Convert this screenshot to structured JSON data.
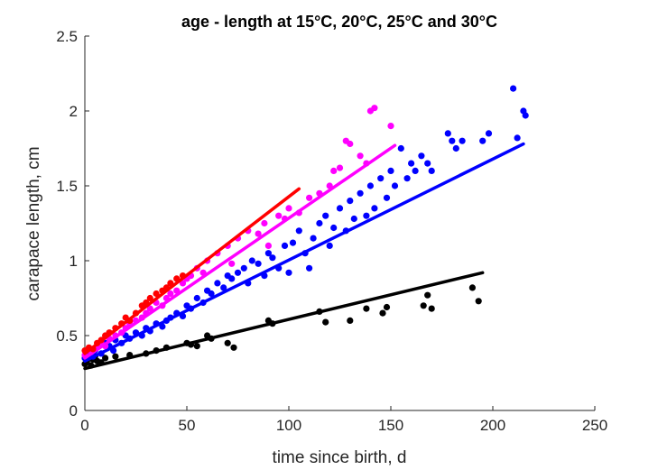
{
  "chart_data": {
    "type": "scatter",
    "title": "age - length at 15°C, 20°C, 25°C and 30°C",
    "xlabel": "time since birth, d",
    "ylabel": "carapace length, cm",
    "xlim": [
      0,
      250
    ],
    "ylim": [
      0,
      2.5
    ],
    "xticks": [
      "0",
      "50",
      "100",
      "150",
      "200",
      "250"
    ],
    "yticks": [
      "0",
      "0.5",
      "1",
      "1.5",
      "2",
      "2.5"
    ],
    "grid": false,
    "legend": "none",
    "series": [
      {
        "color": "#000000",
        "fit": [
          [
            0,
            0.28
          ],
          [
            195,
            0.92
          ]
        ],
        "points": [
          [
            0,
            0.31
          ],
          [
            1,
            0.33
          ],
          [
            2,
            0.35
          ],
          [
            3,
            0.3
          ],
          [
            4,
            0.34
          ],
          [
            5,
            0.36
          ],
          [
            6,
            0.33
          ],
          [
            8,
            0.32
          ],
          [
            10,
            0.35
          ],
          [
            15,
            0.36
          ],
          [
            22,
            0.37
          ],
          [
            30,
            0.38
          ],
          [
            35,
            0.4
          ],
          [
            40,
            0.42
          ],
          [
            50,
            0.45
          ],
          [
            52,
            0.44
          ],
          [
            55,
            0.43
          ],
          [
            60,
            0.5
          ],
          [
            62,
            0.48
          ],
          [
            70,
            0.45
          ],
          [
            73,
            0.42
          ],
          [
            90,
            0.6
          ],
          [
            92,
            0.58
          ],
          [
            115,
            0.66
          ],
          [
            118,
            0.59
          ],
          [
            130,
            0.6
          ],
          [
            138,
            0.68
          ],
          [
            146,
            0.65
          ],
          [
            148,
            0.69
          ],
          [
            166,
            0.7
          ],
          [
            168,
            0.77
          ],
          [
            170,
            0.68
          ],
          [
            190,
            0.82
          ],
          [
            193,
            0.73
          ]
        ]
      },
      {
        "color": "#0000ff",
        "fit": [
          [
            0,
            0.33
          ],
          [
            215,
            1.78
          ]
        ],
        "points": [
          [
            0,
            0.35
          ],
          [
            2,
            0.38
          ],
          [
            4,
            0.36
          ],
          [
            5,
            0.4
          ],
          [
            6,
            0.42
          ],
          [
            8,
            0.38
          ],
          [
            10,
            0.45
          ],
          [
            12,
            0.43
          ],
          [
            14,
            0.4
          ],
          [
            15,
            0.47
          ],
          [
            18,
            0.45
          ],
          [
            20,
            0.5
          ],
          [
            22,
            0.48
          ],
          [
            25,
            0.52
          ],
          [
            28,
            0.5
          ],
          [
            30,
            0.55
          ],
          [
            32,
            0.53
          ],
          [
            35,
            0.58
          ],
          [
            38,
            0.56
          ],
          [
            40,
            0.6
          ],
          [
            42,
            0.62
          ],
          [
            45,
            0.65
          ],
          [
            48,
            0.63
          ],
          [
            50,
            0.7
          ],
          [
            52,
            0.68
          ],
          [
            55,
            0.75
          ],
          [
            58,
            0.72
          ],
          [
            60,
            0.8
          ],
          [
            62,
            0.78
          ],
          [
            65,
            0.85
          ],
          [
            68,
            0.82
          ],
          [
            70,
            0.9
          ],
          [
            72,
            0.88
          ],
          [
            75,
            0.92
          ],
          [
            78,
            0.95
          ],
          [
            80,
            0.85
          ],
          [
            82,
            1.0
          ],
          [
            85,
            0.98
          ],
          [
            88,
            0.9
          ],
          [
            90,
            1.05
          ],
          [
            92,
            1.02
          ],
          [
            95,
            0.95
          ],
          [
            98,
            1.1
          ],
          [
            100,
            0.92
          ],
          [
            102,
            1.12
          ],
          [
            105,
            1.2
          ],
          [
            108,
            1.05
          ],
          [
            110,
            0.95
          ],
          [
            112,
            1.15
          ],
          [
            115,
            1.25
          ],
          [
            118,
            1.3
          ],
          [
            120,
            1.1
          ],
          [
            122,
            1.22
          ],
          [
            125,
            1.35
          ],
          [
            128,
            1.2
          ],
          [
            130,
            1.4
          ],
          [
            132,
            1.28
          ],
          [
            135,
            1.45
          ],
          [
            138,
            1.3
          ],
          [
            140,
            1.5
          ],
          [
            142,
            1.35
          ],
          [
            145,
            1.55
          ],
          [
            148,
            1.42
          ],
          [
            150,
            1.6
          ],
          [
            152,
            1.5
          ],
          [
            155,
            1.75
          ],
          [
            158,
            1.55
          ],
          [
            160,
            1.65
          ],
          [
            162,
            1.6
          ],
          [
            165,
            1.7
          ],
          [
            168,
            1.65
          ],
          [
            170,
            1.6
          ],
          [
            178,
            1.85
          ],
          [
            180,
            1.8
          ],
          [
            182,
            1.75
          ],
          [
            185,
            1.8
          ],
          [
            195,
            1.8
          ],
          [
            198,
            1.85
          ],
          [
            210,
            2.15
          ],
          [
            212,
            1.82
          ],
          [
            215,
            2.0
          ],
          [
            216,
            1.97
          ]
        ]
      },
      {
        "color": "#ff00ff",
        "fit": [
          [
            0,
            0.35
          ],
          [
            152,
            1.77
          ]
        ],
        "points": [
          [
            0,
            0.37
          ],
          [
            3,
            0.39
          ],
          [
            6,
            0.42
          ],
          [
            8,
            0.45
          ],
          [
            10,
            0.43
          ],
          [
            12,
            0.48
          ],
          [
            15,
            0.5
          ],
          [
            18,
            0.52
          ],
          [
            20,
            0.55
          ],
          [
            22,
            0.58
          ],
          [
            25,
            0.6
          ],
          [
            28,
            0.62
          ],
          [
            30,
            0.65
          ],
          [
            32,
            0.68
          ],
          [
            35,
            0.72
          ],
          [
            38,
            0.7
          ],
          [
            40,
            0.75
          ],
          [
            42,
            0.78
          ],
          [
            45,
            0.8
          ],
          [
            48,
            0.85
          ],
          [
            50,
            0.88
          ],
          [
            52,
            0.9
          ],
          [
            55,
            0.95
          ],
          [
            58,
            0.92
          ],
          [
            60,
            1.0
          ],
          [
            65,
            1.05
          ],
          [
            70,
            1.1
          ],
          [
            72,
            0.98
          ],
          [
            75,
            1.15
          ],
          [
            80,
            1.2
          ],
          [
            85,
            1.18
          ],
          [
            88,
            1.25
          ],
          [
            90,
            1.1
          ],
          [
            95,
            1.3
          ],
          [
            98,
            1.28
          ],
          [
            100,
            1.35
          ],
          [
            105,
            1.32
          ],
          [
            110,
            1.42
          ],
          [
            115,
            1.45
          ],
          [
            120,
            1.5
          ],
          [
            122,
            1.6
          ],
          [
            125,
            1.62
          ],
          [
            128,
            1.8
          ],
          [
            130,
            1.78
          ],
          [
            135,
            1.7
          ],
          [
            138,
            1.65
          ],
          [
            140,
            2.0
          ],
          [
            142,
            2.02
          ],
          [
            150,
            1.9
          ]
        ]
      },
      {
        "color": "#ff0000",
        "fit": [
          [
            0,
            0.38
          ],
          [
            105,
            1.48
          ]
        ],
        "points": [
          [
            0,
            0.4
          ],
          [
            2,
            0.42
          ],
          [
            4,
            0.41
          ],
          [
            6,
            0.45
          ],
          [
            8,
            0.47
          ],
          [
            10,
            0.5
          ],
          [
            12,
            0.52
          ],
          [
            15,
            0.55
          ],
          [
            18,
            0.58
          ],
          [
            20,
            0.62
          ],
          [
            22,
            0.6
          ],
          [
            25,
            0.65
          ],
          [
            28,
            0.7
          ],
          [
            30,
            0.72
          ],
          [
            32,
            0.75
          ],
          [
            35,
            0.78
          ],
          [
            38,
            0.8
          ],
          [
            40,
            0.82
          ],
          [
            42,
            0.85
          ],
          [
            45,
            0.88
          ],
          [
            48,
            0.9
          ]
        ]
      }
    ]
  }
}
